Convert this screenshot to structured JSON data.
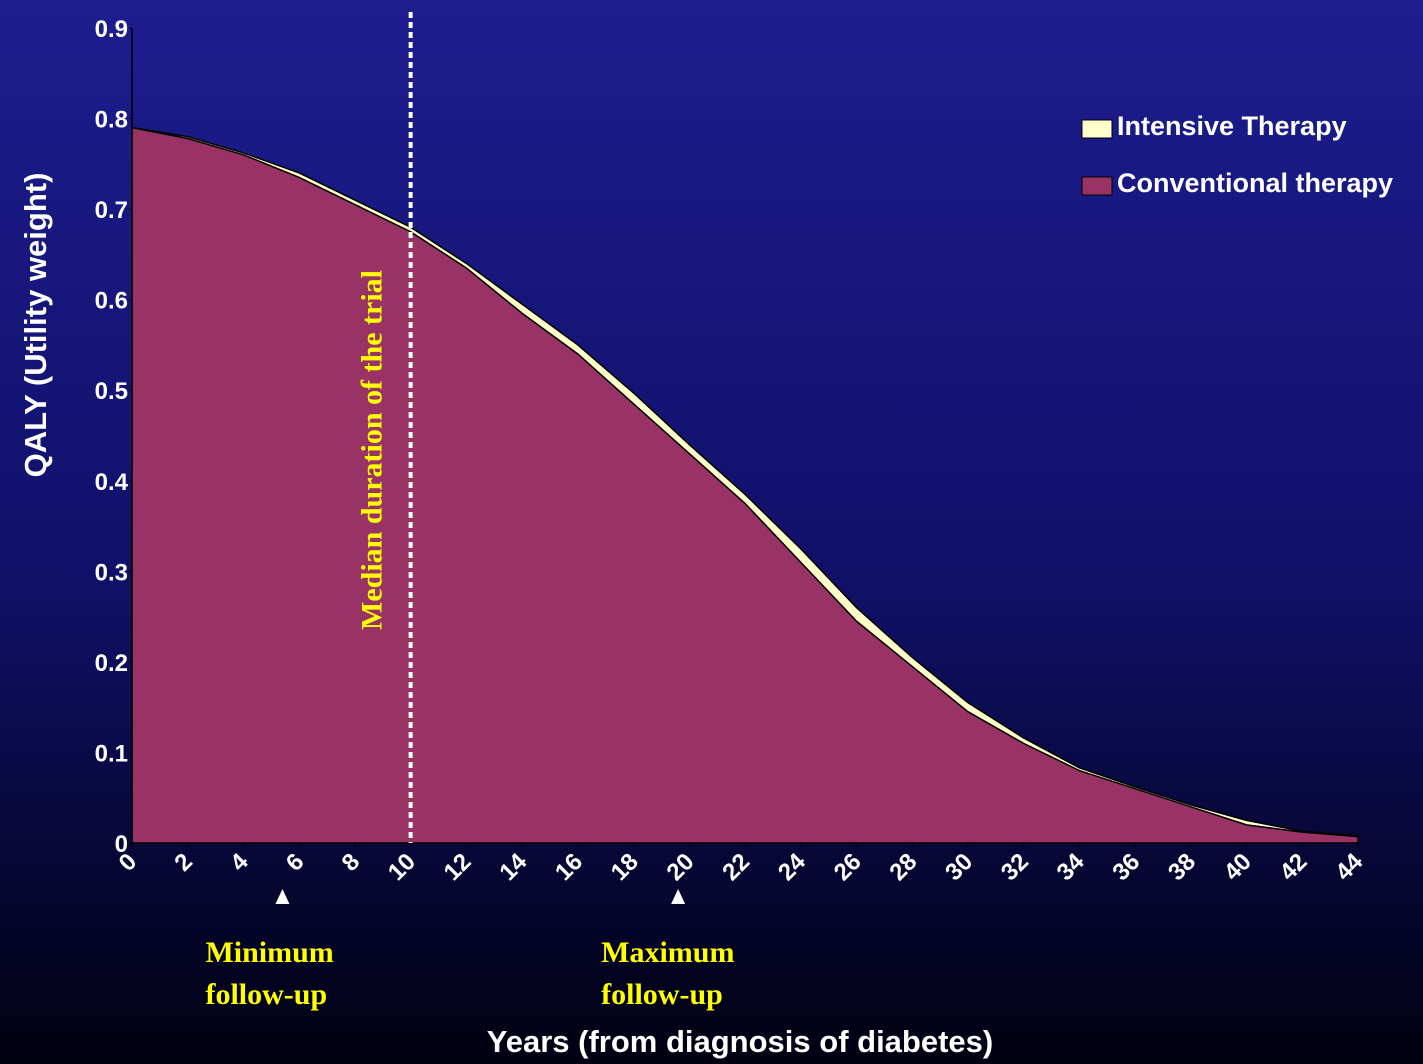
{
  "chart_data": {
    "type": "area",
    "xlabel": "Years (from diagnosis of diabetes)",
    "ylabel": "QALY (Utility weight)",
    "x": [
      0,
      2,
      4,
      6,
      8,
      10,
      12,
      14,
      16,
      18,
      20,
      22,
      24,
      26,
      28,
      30,
      32,
      34,
      36,
      38,
      40,
      42,
      44
    ],
    "series": [
      {
        "name": "Intensive Therapy",
        "color": "#ffffcc",
        "values": [
          0.79,
          0.78,
          0.762,
          0.74,
          0.71,
          0.68,
          0.64,
          0.595,
          0.55,
          0.497,
          0.44,
          0.385,
          0.325,
          0.26,
          0.205,
          0.155,
          0.116,
          0.083,
          0.062,
          0.042,
          0.025,
          0.013,
          0.008
        ]
      },
      {
        "name": "Conventional therapy",
        "color": "#993366",
        "values": [
          0.79,
          0.778,
          0.76,
          0.735,
          0.705,
          0.675,
          0.635,
          0.585,
          0.54,
          0.485,
          0.43,
          0.375,
          0.31,
          0.245,
          0.195,
          0.145,
          0.11,
          0.08,
          0.06,
          0.04,
          0.02,
          0.012,
          0.007
        ]
      }
    ],
    "xlim": [
      0,
      44
    ],
    "xticks": [
      0,
      2,
      4,
      6,
      8,
      10,
      12,
      14,
      16,
      18,
      20,
      22,
      24,
      26,
      28,
      30,
      32,
      34,
      36,
      38,
      40,
      42,
      44
    ],
    "ylim": [
      0,
      0.9
    ],
    "yticks": [
      0,
      0.1,
      0.2,
      0.3,
      0.4,
      0.5,
      0.6,
      0.7,
      0.8,
      0.9
    ],
    "legend": "upper right",
    "annotations": [
      {
        "x": 10,
        "text": "Median duration of the trial"
      },
      {
        "x": 5.4,
        "lines": [
          "Minimum",
          "follow-up"
        ]
      },
      {
        "x": 19.6,
        "lines": [
          "Maximum",
          "follow-up"
        ]
      }
    ]
  }
}
